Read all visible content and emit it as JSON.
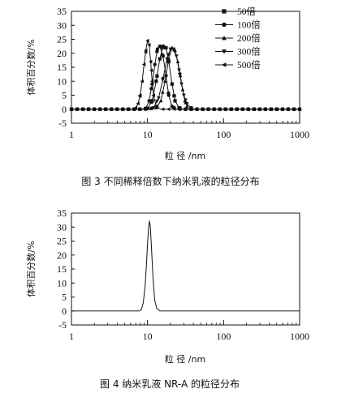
{
  "chart_data": [
    {
      "type": "line",
      "xscale": "log",
      "xlim": [
        1,
        1000
      ],
      "ylim": [
        -5,
        35
      ],
      "xticks": [
        "1",
        "10",
        "100",
        "1000"
      ],
      "yticks": [
        "35",
        "30",
        "25",
        "20",
        "15",
        "10",
        "5",
        "0",
        "-5"
      ],
      "xlabel": "粒 径 /nm",
      "ylabel": "体积百分数/%",
      "legend_position": "top-right",
      "caption": "图 3   不同稀释倍数下纳米乳液的粒径分布",
      "series": [
        {
          "name": "50倍",
          "marker": "square",
          "x": [
            1,
            2,
            5,
            8,
            10,
            11.5,
            13,
            14.5,
            16,
            17.5,
            19,
            21,
            23,
            26,
            30,
            40,
            100,
            1000
          ],
          "y": [
            0,
            0,
            0,
            0,
            0.3,
            3,
            10,
            18,
            22.5,
            22,
            17,
            9,
            3,
            0.5,
            0,
            0,
            0,
            0
          ]
        },
        {
          "name": "100倍",
          "marker": "circle",
          "x": [
            1,
            2,
            5,
            8,
            9.5,
            10.5,
            11.5,
            12.5,
            13.5,
            14.5,
            16,
            17.5,
            19,
            21,
            24,
            30,
            100,
            1000
          ],
          "y": [
            0,
            0,
            0,
            0,
            0.3,
            3,
            9,
            16,
            21.5,
            22.5,
            19,
            12,
            5,
            1,
            0,
            0,
            0,
            0
          ]
        },
        {
          "name": "200倍",
          "marker": "triangle-up",
          "x": [
            1,
            2,
            5,
            10,
            13,
            15,
            17,
            19,
            21,
            23,
            25,
            27,
            29,
            31,
            33,
            36,
            50,
            100,
            1000
          ],
          "y": [
            0,
            0,
            0,
            0,
            0.5,
            3,
            10,
            18,
            22,
            21,
            17,
            12,
            7,
            3,
            1,
            0,
            0,
            0,
            0
          ]
        },
        {
          "name": "300倍",
          "marker": "triangle-down",
          "x": [
            1,
            2,
            5,
            10,
            12,
            14,
            16,
            18,
            20,
            22,
            24,
            26,
            28,
            30,
            33,
            37,
            42,
            50,
            100,
            1000
          ],
          "y": [
            0,
            0,
            0,
            0,
            0.5,
            4,
            11,
            18,
            21.5,
            21.5,
            19,
            14,
            9,
            5,
            2,
            0.5,
            0,
            0,
            0,
            0
          ]
        },
        {
          "name": "500倍",
          "marker": "triangle-left",
          "x": [
            1,
            2,
            5,
            6.5,
            7,
            7.5,
            8,
            8.5,
            9,
            9.5,
            10,
            10.5,
            11,
            11.5,
            12,
            13,
            15,
            20,
            100,
            1000
          ],
          "y": [
            0,
            0,
            0,
            0,
            0.5,
            2,
            5,
            10,
            16,
            21,
            24.5,
            23,
            17,
            10,
            5,
            1,
            0,
            0,
            0,
            0
          ]
        }
      ]
    },
    {
      "type": "line",
      "xscale": "log",
      "xlim": [
        1,
        1000
      ],
      "ylim": [
        -5,
        35
      ],
      "xticks": [
        "1",
        "10",
        "100",
        "1000"
      ],
      "yticks": [
        "35",
        "30",
        "25",
        "20",
        "15",
        "10",
        "5",
        "0",
        "-5"
      ],
      "xlabel": "粒 径 /nm",
      "ylabel": "体积百分数/%",
      "caption": "图 4   纳米乳液 NR-A 的粒径分布",
      "series": [
        {
          "name": "",
          "x": [
            1,
            5,
            7.8,
            8.3,
            8.8,
            9.3,
            9.7,
            10.0,
            10.3,
            10.6,
            10.9,
            11.3,
            11.8,
            12.4,
            13.2,
            14.5,
            20,
            100,
            1000
          ],
          "y": [
            0,
            0,
            0,
            0.5,
            3,
            9,
            17,
            24,
            29.5,
            32.3,
            30,
            22,
            12,
            4,
            1,
            0,
            0,
            0,
            0
          ]
        }
      ]
    }
  ]
}
